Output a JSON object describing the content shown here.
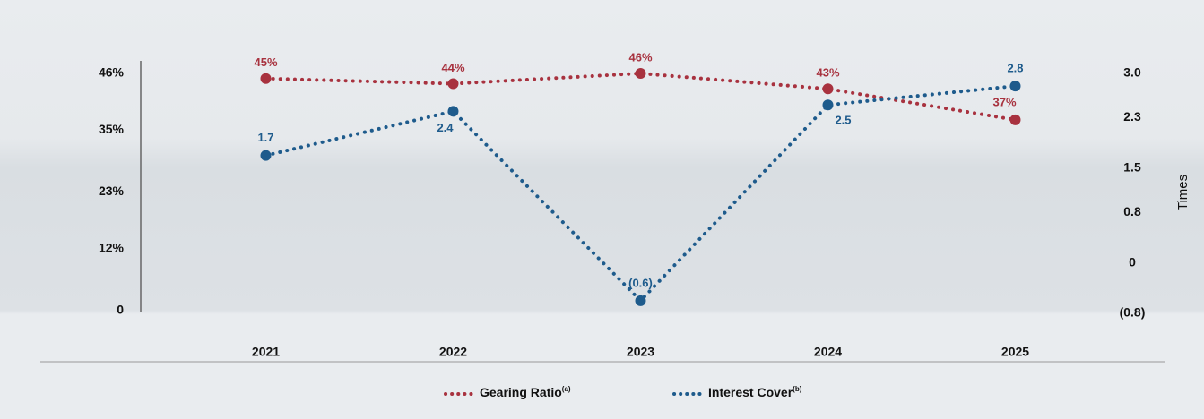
{
  "chart_data": {
    "type": "line",
    "categories": [
      "2021",
      "2022",
      "2023",
      "2024",
      "2025"
    ],
    "series": [
      {
        "name": "Gearing Ratio",
        "footnote": "(a)",
        "color": "#a8323f",
        "values": [
          45,
          44,
          46,
          43,
          37
        ],
        "value_labels": [
          "45%",
          "44%",
          "46%",
          "43%",
          "37%"
        ]
      },
      {
        "name": "Interest Cover",
        "footnote": "(b)",
        "color": "#1e5b8c",
        "axis": "y2",
        "values": [
          1.7,
          2.4,
          -0.6,
          2.5,
          2.8
        ],
        "value_labels": [
          "1.7",
          "2.4",
          "(0.6)",
          "2.5",
          "2.8"
        ]
      }
    ],
    "ylim": [
      0,
      46
    ],
    "yticks": [
      0,
      {
        "value": 12,
        "label": "12%"
      },
      {
        "value": 23,
        "label": "23%"
      },
      {
        "value": 35,
        "label": "35%"
      },
      {
        "value": 46,
        "label": "46%"
      }
    ],
    "y2lim": [
      -0.8,
      3.0
    ],
    "y2ticks": [
      {
        "value": -0.8,
        "label": "(0.8)"
      },
      0,
      0.8,
      1.5,
      2.3,
      {
        "value": 3,
        "label": "3.0"
      }
    ],
    "y2label": "Times",
    "legend": "bottom"
  }
}
